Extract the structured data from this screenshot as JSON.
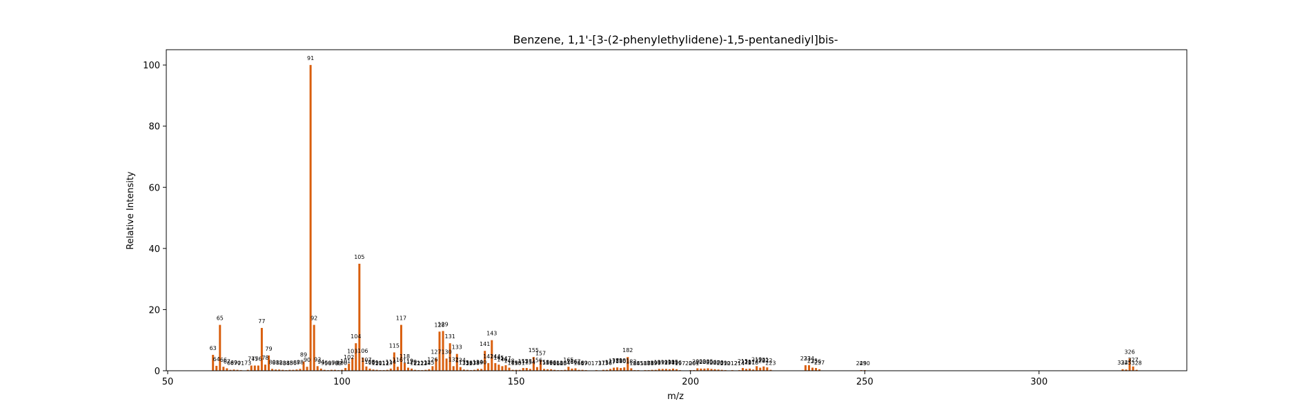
{
  "chart_data": {
    "type": "bar",
    "title": "Benzene, 1,1'-[3-(2-phenylethylidene)-1,5-pentanediyl]bis-",
    "xlabel": "m/z",
    "ylabel": "Relative Intensity",
    "xlim": [
      49.6,
      342.4
    ],
    "ylim": [
      0,
      105
    ],
    "xticks": [
      50,
      100,
      150,
      200,
      250,
      300
    ],
    "yticks": [
      0,
      20,
      40,
      60,
      80,
      100
    ],
    "grid": false,
    "bar_color": "#d95f0e",
    "peaks": [
      [
        63,
        5.2
      ],
      [
        64,
        1.6
      ],
      [
        65,
        15.0
      ],
      [
        66,
        1.3
      ],
      [
        67,
        0.8
      ],
      [
        68,
        0.3
      ],
      [
        69,
        0.4
      ],
      [
        70,
        0.3
      ],
      [
        71,
        0.2
      ],
      [
        73,
        0.3
      ],
      [
        74,
        1.7
      ],
      [
        75,
        1.7
      ],
      [
        76,
        1.7
      ],
      [
        77,
        14.0
      ],
      [
        78,
        2.0
      ],
      [
        79,
        5.0
      ],
      [
        80,
        0.6
      ],
      [
        81,
        0.4
      ],
      [
        82,
        0.4
      ],
      [
        83,
        0.3
      ],
      [
        84,
        0.2
      ],
      [
        85,
        0.3
      ],
      [
        86,
        0.3
      ],
      [
        87,
        0.4
      ],
      [
        88,
        0.6
      ],
      [
        89,
        3.0
      ],
      [
        90,
        1.3
      ],
      [
        91,
        100.0
      ],
      [
        92,
        15.0
      ],
      [
        93,
        1.5
      ],
      [
        94,
        0.7
      ],
      [
        95,
        0.3
      ],
      [
        96,
        0.2
      ],
      [
        97,
        0.3
      ],
      [
        98,
        0.3
      ],
      [
        99,
        0.2
      ],
      [
        100,
        0.3
      ],
      [
        101,
        0.9
      ],
      [
        102,
        2.3
      ],
      [
        103,
        4.2
      ],
      [
        104,
        9.0
      ],
      [
        105,
        35.0
      ],
      [
        106,
        4.3
      ],
      [
        107,
        1.4
      ],
      [
        108,
        0.7
      ],
      [
        109,
        0.4
      ],
      [
        110,
        0.3
      ],
      [
        111,
        0.2
      ],
      [
        112,
        0.2
      ],
      [
        113,
        0.3
      ],
      [
        114,
        0.7
      ],
      [
        115,
        6.0
      ],
      [
        116,
        1.3
      ],
      [
        117,
        15.0
      ],
      [
        118,
        2.5
      ],
      [
        119,
        1.0
      ],
      [
        120,
        0.7
      ],
      [
        121,
        0.3
      ],
      [
        122,
        0.2
      ],
      [
        123,
        0.2
      ],
      [
        124,
        0.3
      ],
      [
        125,
        0.5
      ],
      [
        126,
        1.5
      ],
      [
        127,
        4.0
      ],
      [
        128,
        12.8
      ],
      [
        129,
        13.0
      ],
      [
        130,
        4.0
      ],
      [
        131,
        9.0
      ],
      [
        132,
        1.5
      ],
      [
        133,
        5.5
      ],
      [
        134,
        1.2
      ],
      [
        135,
        0.4
      ],
      [
        136,
        0.3
      ],
      [
        137,
        0.2
      ],
      [
        138,
        0.3
      ],
      [
        139,
        0.6
      ],
      [
        140,
        0.6
      ],
      [
        141,
        6.5
      ],
      [
        142,
        2.5
      ],
      [
        143,
        10.0
      ],
      [
        144,
        2.5
      ],
      [
        145,
        2.0
      ],
      [
        146,
        1.5
      ],
      [
        147,
        1.8
      ],
      [
        148,
        1.0
      ],
      [
        149,
        0.3
      ],
      [
        150,
        0.3
      ],
      [
        151,
        0.3
      ],
      [
        152,
        0.9
      ],
      [
        153,
        0.9
      ],
      [
        154,
        0.6
      ],
      [
        155,
        4.5
      ],
      [
        156,
        1.2
      ],
      [
        157,
        3.5
      ],
      [
        158,
        0.6
      ],
      [
        159,
        0.5
      ],
      [
        160,
        0.5
      ],
      [
        161,
        0.3
      ],
      [
        162,
        0.2
      ],
      [
        163,
        0.2
      ],
      [
        164,
        0.3
      ],
      [
        165,
        1.3
      ],
      [
        166,
        0.7
      ],
      [
        167,
        0.8
      ],
      [
        168,
        0.3
      ],
      [
        169,
        0.3
      ],
      [
        170,
        0.2
      ],
      [
        173,
        0.2
      ],
      [
        175,
        0.3
      ],
      [
        176,
        0.3
      ],
      [
        177,
        0.6
      ],
      [
        178,
        1.0
      ],
      [
        179,
        1.1
      ],
      [
        180,
        0.9
      ],
      [
        181,
        1.1
      ],
      [
        182,
        4.5
      ],
      [
        183,
        0.8
      ],
      [
        184,
        0.2
      ],
      [
        185,
        0.2
      ],
      [
        187,
        0.2
      ],
      [
        188,
        0.2
      ],
      [
        189,
        0.3
      ],
      [
        190,
        0.3
      ],
      [
        191,
        0.6
      ],
      [
        192,
        0.6
      ],
      [
        193,
        0.6
      ],
      [
        194,
        0.5
      ],
      [
        195,
        0.7
      ],
      [
        196,
        0.5
      ],
      [
        197,
        0.2
      ],
      [
        200,
        0.2
      ],
      [
        201,
        0.2
      ],
      [
        202,
        0.8
      ],
      [
        203,
        0.7
      ],
      [
        204,
        0.7
      ],
      [
        205,
        0.8
      ],
      [
        206,
        0.6
      ],
      [
        207,
        0.5
      ],
      [
        208,
        0.4
      ],
      [
        209,
        0.3
      ],
      [
        210,
        0.2
      ],
      [
        212,
        0.2
      ],
      [
        214,
        0.2
      ],
      [
        215,
        0.9
      ],
      [
        216,
        0.6
      ],
      [
        217,
        0.7
      ],
      [
        218,
        0.4
      ],
      [
        219,
        1.5
      ],
      [
        220,
        1.0
      ],
      [
        221,
        1.4
      ],
      [
        222,
        1.1
      ],
      [
        223,
        0.3
      ],
      [
        233,
        1.8
      ],
      [
        234,
        1.8
      ],
      [
        235,
        1.0
      ],
      [
        236,
        0.9
      ],
      [
        237,
        0.5
      ],
      [
        249,
        0.2
      ],
      [
        250,
        0.2
      ],
      [
        324,
        0.5
      ],
      [
        325,
        0.4
      ],
      [
        326,
        4.0
      ],
      [
        327,
        1.4
      ],
      [
        328,
        0.3
      ]
    ],
    "labels": [
      [
        63,
        "63"
      ],
      [
        64,
        "64"
      ],
      [
        65,
        "65"
      ],
      [
        66,
        "66"
      ],
      [
        67,
        "67"
      ],
      [
        68,
        "68"
      ],
      [
        69,
        "69"
      ],
      [
        70,
        "70"
      ],
      [
        71,
        "71"
      ],
      [
        73,
        "73"
      ],
      [
        74,
        "74"
      ],
      [
        75,
        "75"
      ],
      [
        76,
        "76"
      ],
      [
        77,
        "77"
      ],
      [
        78,
        "78"
      ],
      [
        79,
        "79"
      ],
      [
        80,
        "80"
      ],
      [
        81,
        "81"
      ],
      [
        82,
        "82"
      ],
      [
        83,
        "83"
      ],
      [
        84,
        "84"
      ],
      [
        85,
        "85"
      ],
      [
        86,
        "86"
      ],
      [
        87,
        "87"
      ],
      [
        88,
        "88"
      ],
      [
        89,
        "89"
      ],
      [
        90,
        "90"
      ],
      [
        91,
        "91"
      ],
      [
        92,
        "92"
      ],
      [
        93,
        "93"
      ],
      [
        94,
        "94"
      ],
      [
        95,
        "95"
      ],
      [
        96,
        "96"
      ],
      [
        97,
        "97"
      ],
      [
        98,
        "98"
      ],
      [
        99,
        "99"
      ],
      [
        100,
        "100"
      ],
      [
        101,
        "101"
      ],
      [
        102,
        "102"
      ],
      [
        103,
        "103"
      ],
      [
        104,
        "104"
      ],
      [
        105,
        "105"
      ],
      [
        106,
        "106"
      ],
      [
        107,
        "107"
      ],
      [
        108,
        "108"
      ],
      [
        109,
        "109"
      ],
      [
        110,
        "110"
      ],
      [
        111,
        "111"
      ],
      [
        112,
        "112"
      ],
      [
        113,
        "113"
      ],
      [
        114,
        "114"
      ],
      [
        115,
        "115"
      ],
      [
        116,
        "116"
      ],
      [
        117,
        "117"
      ],
      [
        118,
        "118"
      ],
      [
        119,
        "119"
      ],
      [
        120,
        "120"
      ],
      [
        121,
        "121"
      ],
      [
        122,
        "122"
      ],
      [
        123,
        "123"
      ],
      [
        124,
        "124"
      ],
      [
        125,
        "125"
      ],
      [
        126,
        "126"
      ],
      [
        127,
        "127"
      ],
      [
        128,
        "128"
      ],
      [
        129,
        "129"
      ],
      [
        130,
        "130"
      ],
      [
        131,
        "131"
      ],
      [
        132,
        "132"
      ],
      [
        133,
        "133"
      ],
      [
        134,
        "134"
      ],
      [
        135,
        "135"
      ],
      [
        136,
        "136"
      ],
      [
        137,
        "137"
      ],
      [
        138,
        "138"
      ],
      [
        139,
        "139"
      ],
      [
        140,
        "140"
      ],
      [
        141,
        "141"
      ],
      [
        142,
        "142"
      ],
      [
        143,
        "143"
      ],
      [
        144,
        "144"
      ],
      [
        145,
        "145"
      ],
      [
        146,
        "146"
      ],
      [
        147,
        "147"
      ],
      [
        148,
        "148"
      ],
      [
        149,
        "149"
      ],
      [
        150,
        "150"
      ],
      [
        151,
        "151"
      ],
      [
        152,
        "152"
      ],
      [
        153,
        "153"
      ],
      [
        154,
        "154"
      ],
      [
        155,
        "155"
      ],
      [
        156,
        "156"
      ],
      [
        157,
        "157"
      ],
      [
        158,
        "158"
      ],
      [
        159,
        "159"
      ],
      [
        160,
        "160"
      ],
      [
        161,
        "161"
      ],
      [
        162,
        "162"
      ],
      [
        163,
        "163"
      ],
      [
        164,
        "164"
      ],
      [
        165,
        "165"
      ],
      [
        166,
        "166"
      ],
      [
        167,
        "167"
      ],
      [
        168,
        "168"
      ],
      [
        169,
        "169"
      ],
      [
        170,
        "170"
      ],
      [
        173,
        "173"
      ],
      [
        175,
        "175"
      ],
      [
        176,
        "176"
      ],
      [
        177,
        "177"
      ],
      [
        178,
        "178"
      ],
      [
        179,
        "179"
      ],
      [
        180,
        "180"
      ],
      [
        181,
        "181"
      ],
      [
        182,
        "182"
      ],
      [
        183,
        "183"
      ],
      [
        184,
        "184"
      ],
      [
        185,
        "185"
      ],
      [
        187,
        "187"
      ],
      [
        188,
        "188"
      ],
      [
        189,
        "189"
      ],
      [
        190,
        "190"
      ],
      [
        191,
        "191"
      ],
      [
        192,
        "192"
      ],
      [
        193,
        "193"
      ],
      [
        194,
        "194"
      ],
      [
        195,
        "195"
      ],
      [
        196,
        "196"
      ],
      [
        197,
        "197"
      ],
      [
        200,
        "200"
      ],
      [
        201,
        "201"
      ],
      [
        202,
        "202"
      ],
      [
        203,
        "203"
      ],
      [
        204,
        "204"
      ],
      [
        205,
        "205"
      ],
      [
        206,
        "206"
      ],
      [
        207,
        "207"
      ],
      [
        208,
        "208"
      ],
      [
        209,
        "209"
      ],
      [
        210,
        "210"
      ],
      [
        212,
        "212"
      ],
      [
        214,
        "214"
      ],
      [
        215,
        "215"
      ],
      [
        216,
        "216"
      ],
      [
        217,
        "217"
      ],
      [
        218,
        "218"
      ],
      [
        219,
        "219"
      ],
      [
        220,
        "220"
      ],
      [
        221,
        "221"
      ],
      [
        222,
        "222"
      ],
      [
        223,
        "223"
      ],
      [
        233,
        "233"
      ],
      [
        234,
        "234"
      ],
      [
        235,
        "235"
      ],
      [
        236,
        "236"
      ],
      [
        237,
        "237"
      ],
      [
        249,
        "249"
      ],
      [
        250,
        "250"
      ],
      [
        324,
        "324"
      ],
      [
        325,
        "325"
      ],
      [
        326,
        "326"
      ],
      [
        327,
        "327"
      ],
      [
        328,
        "328"
      ]
    ]
  }
}
